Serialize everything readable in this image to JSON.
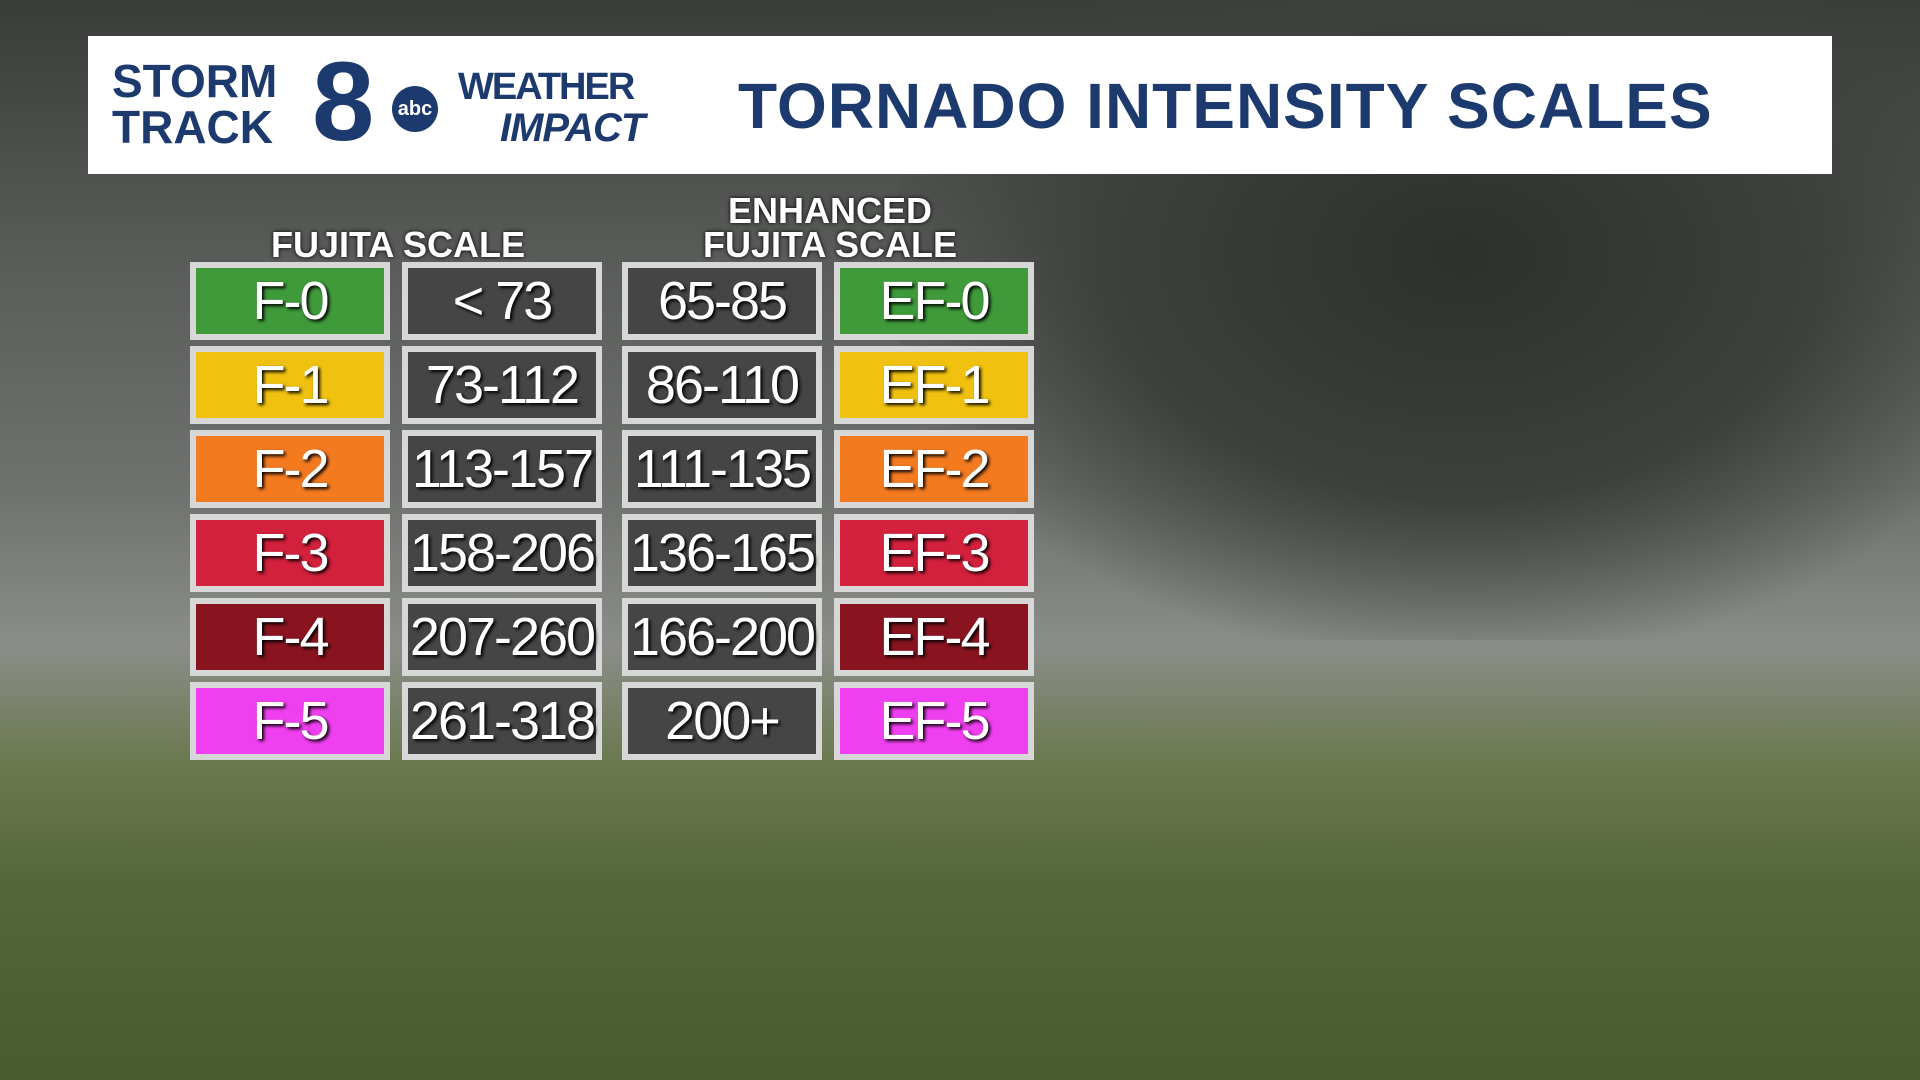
{
  "header": {
    "logo": {
      "storm": "STORM",
      "track": "TRACK",
      "number": "8",
      "network": "abc",
      "weather": "WEATHER",
      "impact": "IMPACT"
    },
    "title": "TORNADO INTENSITY SCALES"
  },
  "fujita": {
    "title": "FUJITA SCALE",
    "rows": [
      {
        "label": "F-0",
        "mph": "< 73",
        "color": "#3f9a3a"
      },
      {
        "label": "F-1",
        "mph": "73-112",
        "color": "#f0c10f"
      },
      {
        "label": "F-2",
        "mph": "113-157",
        "color": "#f47a20"
      },
      {
        "label": "F-3",
        "mph": "158-206",
        "color": "#d3203c"
      },
      {
        "label": "F-4",
        "mph": "207-260",
        "color": "#891420"
      },
      {
        "label": "F-5",
        "mph": "261-318",
        "color": "#f03ff0"
      }
    ]
  },
  "enhanced": {
    "title_lines": [
      "ENHANCED",
      "FUJITA SCALE"
    ],
    "rows": [
      {
        "label": "EF-0",
        "mph": "65-85",
        "color": "#3f9a3a"
      },
      {
        "label": "EF-1",
        "mph": "86-110",
        "color": "#f0c10f"
      },
      {
        "label": "EF-2",
        "mph": "111-135",
        "color": "#f47a20"
      },
      {
        "label": "EF-3",
        "mph": "136-165",
        "color": "#d3203c"
      },
      {
        "label": "EF-4",
        "mph": "166-200",
        "color": "#891420"
      },
      {
        "label": "EF-5",
        "mph": "200+",
        "color": "#f03ff0"
      }
    ]
  }
}
